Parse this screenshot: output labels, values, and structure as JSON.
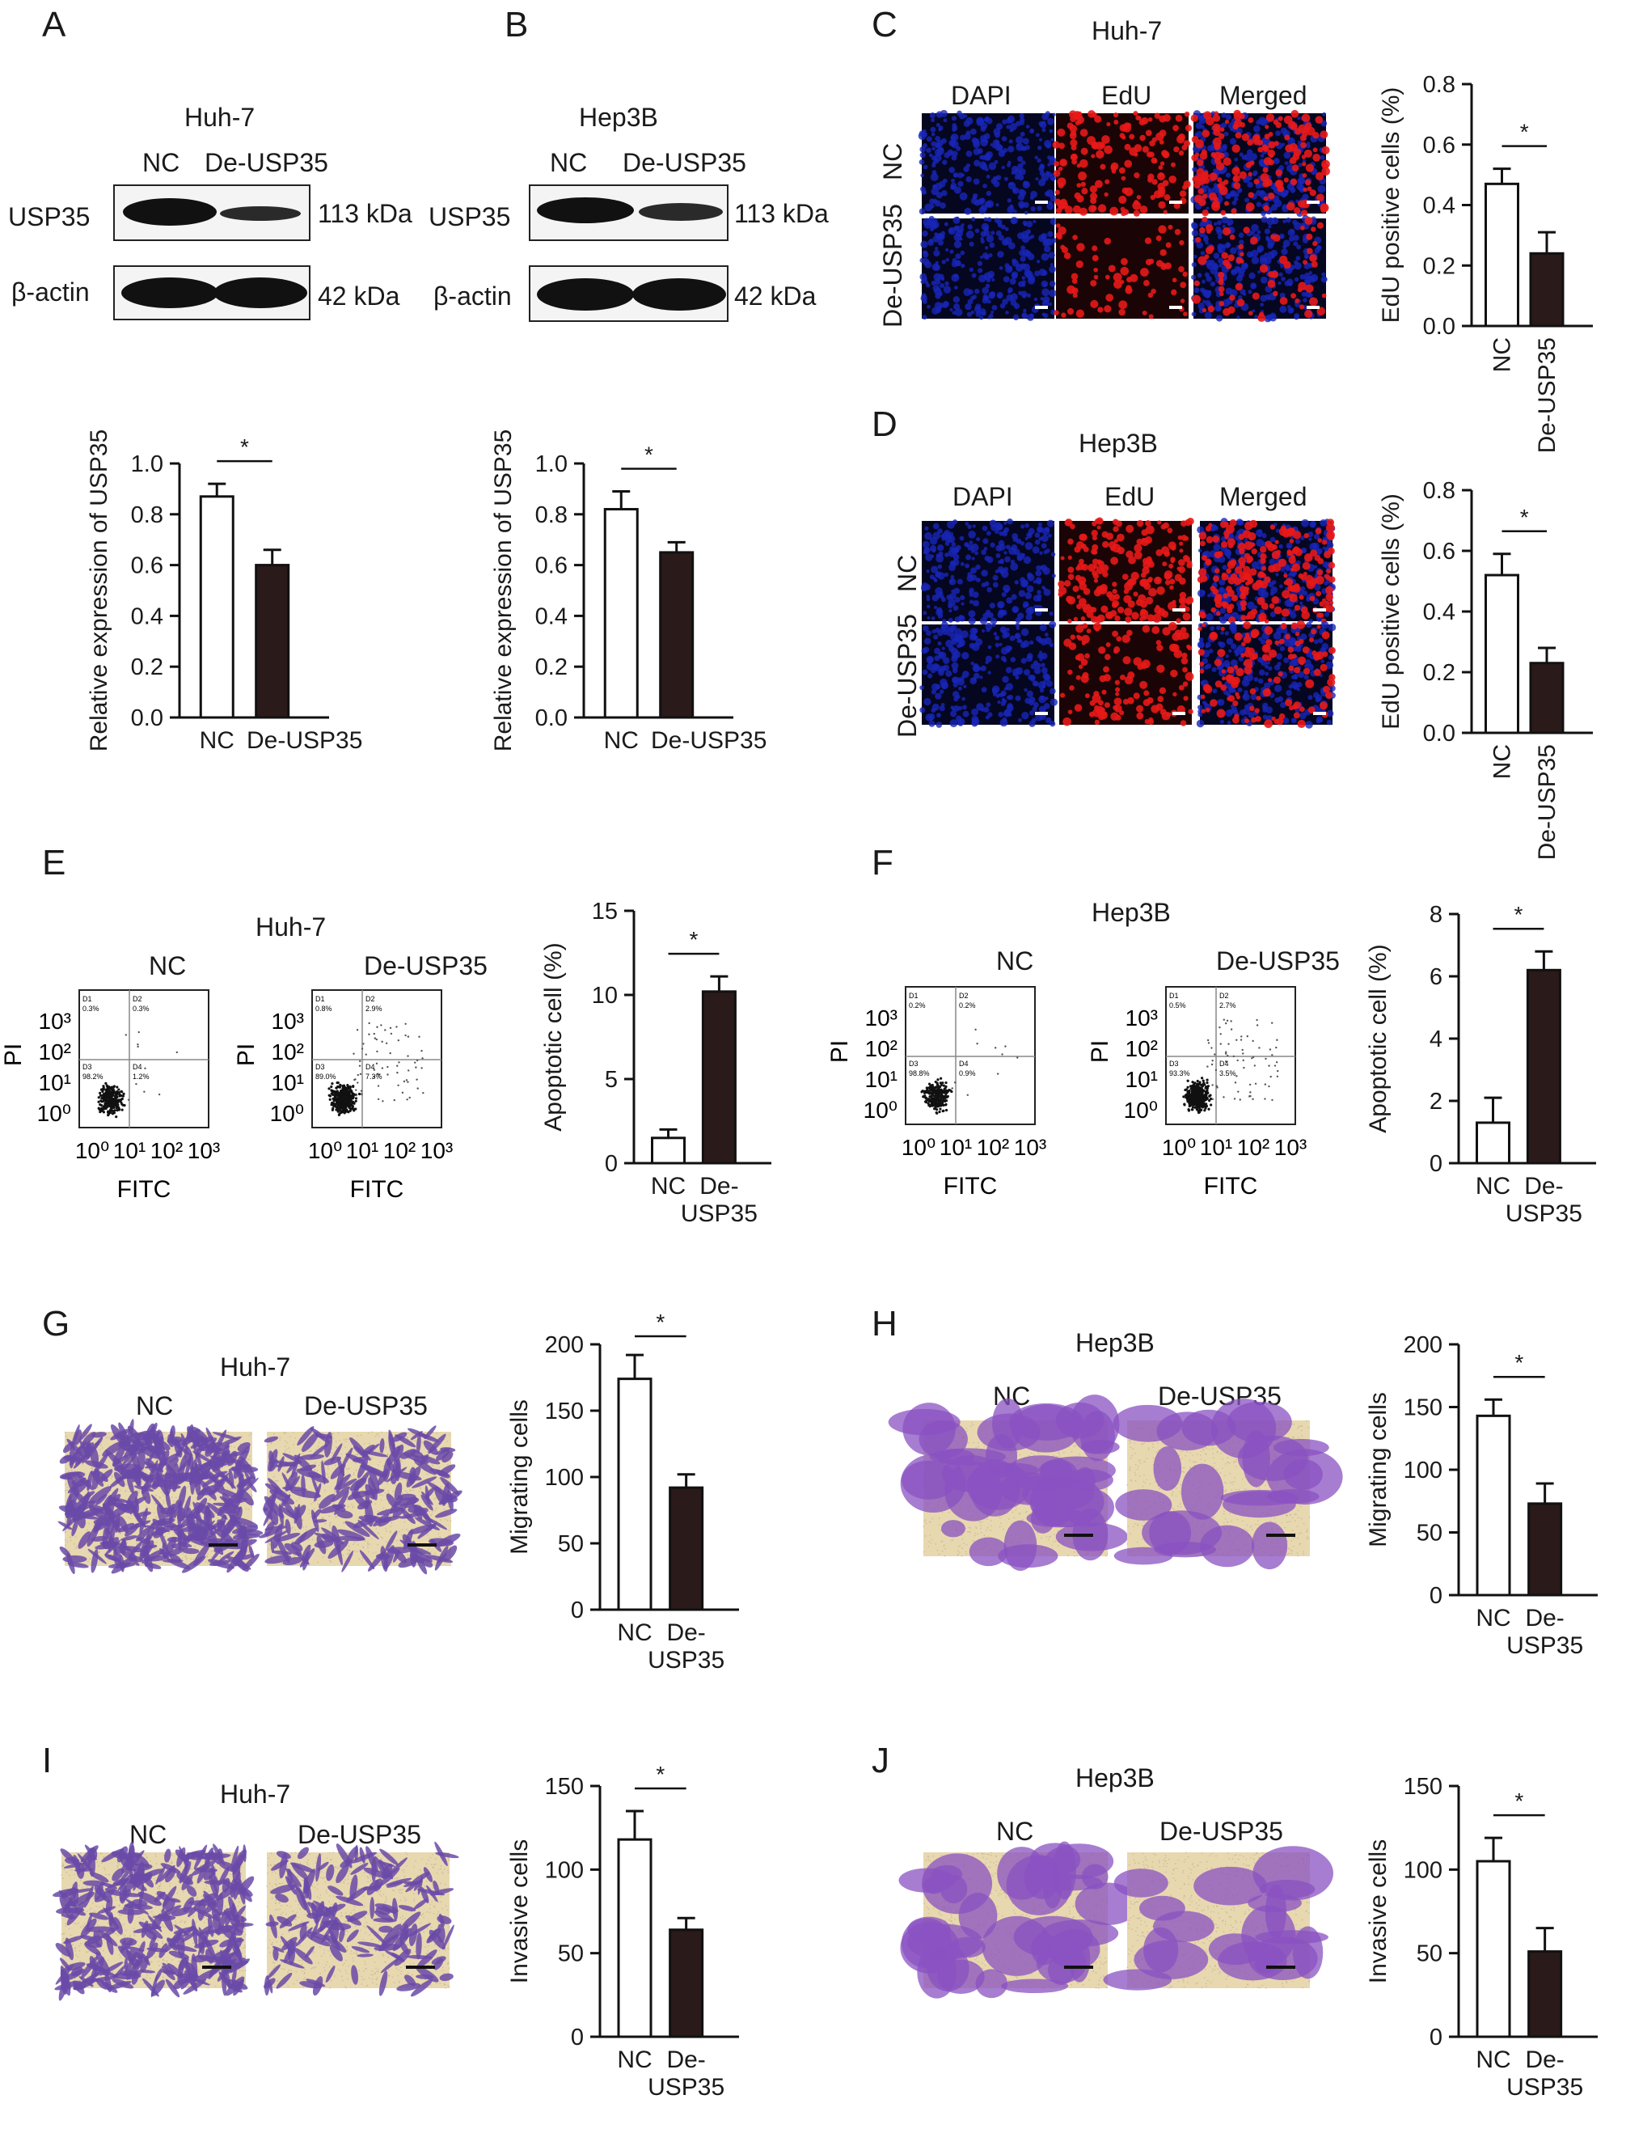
{
  "panels": {
    "A": {
      "letter": "A",
      "cell": "Huh-7",
      "nc": "NC",
      "de": "De-USP35",
      "row1": "USP35",
      "row1_kda": "113 kDa",
      "row2": "β-actin",
      "row2_kda": "42 kDa"
    },
    "B": {
      "letter": "B",
      "cell": "Hep3B",
      "nc": "NC",
      "de": "De-USP35",
      "row1": "USP35",
      "row1_kda": "113 kDa",
      "row2": "β-actin",
      "row2_kda": "42 kDa"
    },
    "C": {
      "letter": "C",
      "cell": "Huh-7",
      "col1": "DAPI",
      "col2": "EdU",
      "col3": "Merged",
      "row1": "NC",
      "row2": "De-USP35"
    },
    "D": {
      "letter": "D",
      "cell": "Hep3B",
      "col1": "DAPI",
      "col2": "EdU",
      "col3": "Merged",
      "row1": "NC",
      "row2": "De-USP35"
    },
    "E": {
      "letter": "E",
      "cell": "Huh-7",
      "nc": "NC",
      "de": "De-USP35",
      "ylabel": "PI",
      "xlabel": "FITC",
      "q_nc": [
        "D1 0.3%",
        "D2 0.3%",
        "D3 98.2%",
        "D4 1.2%"
      ],
      "q_de": [
        "D1 0.8%",
        "D2 2.9%",
        "D3 89.0%",
        "D4 7.3%"
      ]
    },
    "F": {
      "letter": "F",
      "cell": "Hep3B",
      "nc": "NC",
      "de": "De-USP35",
      "ylabel": "PI",
      "xlabel": "FITC",
      "q_nc": [
        "D1 0.2%",
        "D2 0.2%",
        "D3 98.8%",
        "D4 0.9%"
      ],
      "q_de": [
        "D1 0.5%",
        "D2 2.7%",
        "D3 93.3%",
        "D4 3.5%"
      ]
    },
    "G": {
      "letter": "G",
      "cell": "Huh-7",
      "nc": "NC",
      "de": "De-USP35"
    },
    "H": {
      "letter": "H",
      "cell": "Hep3B",
      "nc": "NC",
      "de": "De-USP35"
    },
    "I": {
      "letter": "I",
      "cell": "Huh-7",
      "nc": "NC",
      "de": "De-USP35"
    },
    "J": {
      "letter": "J",
      "cell": "Hep3B",
      "nc": "NC",
      "de": "De-USP35"
    }
  },
  "flow_ticks": [
    "10⁰",
    "10¹",
    "10²",
    "10³"
  ],
  "colors": {
    "nc_bar": "#ffffff",
    "de_bar": "#2b1a1a",
    "dapi": "#1020a8",
    "edu": "#d01818",
    "crystal": "#8a5cc0",
    "bg_transwell": "#e8d8b0"
  },
  "chart_data": [
    {
      "id": "A",
      "type": "bar",
      "categories": [
        "NC",
        "De-USP35"
      ],
      "values": [
        0.87,
        0.6
      ],
      "errors": [
        0.05,
        0.06
      ],
      "ylabel": "Relative expression of USP35",
      "ylim": [
        0,
        1.0
      ],
      "yticks": [
        "0.0",
        "0.2",
        "0.4",
        "0.6",
        "0.8",
        "1.0"
      ],
      "significance": "*",
      "rotate": false
    },
    {
      "id": "B",
      "type": "bar",
      "categories": [
        "NC",
        "De-USP35"
      ],
      "values": [
        0.82,
        0.65
      ],
      "errors": [
        0.07,
        0.04
      ],
      "ylabel": "Relative expression of USP35",
      "ylim": [
        0,
        1.0
      ],
      "yticks": [
        "0.0",
        "0.2",
        "0.4",
        "0.6",
        "0.8",
        "1.0"
      ],
      "significance": "*",
      "rotate": false
    },
    {
      "id": "C",
      "type": "bar",
      "categories": [
        "NC",
        "De-USP35"
      ],
      "values": [
        0.47,
        0.24
      ],
      "errors": [
        0.05,
        0.07
      ],
      "ylabel": "EdU positive cells (%)",
      "ylim": [
        0,
        0.8
      ],
      "yticks": [
        "0.0",
        "0.2",
        "0.4",
        "0.6",
        "0.8"
      ],
      "significance": "*",
      "rotate": true
    },
    {
      "id": "D",
      "type": "bar",
      "categories": [
        "NC",
        "De-USP35"
      ],
      "values": [
        0.52,
        0.23
      ],
      "errors": [
        0.07,
        0.05
      ],
      "ylabel": "EdU positive cells (%)",
      "ylim": [
        0,
        0.8
      ],
      "yticks": [
        "0.0",
        "0.2",
        "0.4",
        "0.6",
        "0.8"
      ],
      "significance": "*",
      "rotate": true
    },
    {
      "id": "E",
      "type": "bar",
      "categories": [
        "NC",
        "De-\nUSP35"
      ],
      "values": [
        1.5,
        10.2
      ],
      "errors": [
        0.5,
        0.9
      ],
      "ylabel": "Apoptotic cell (%)",
      "ylim": [
        0,
        15
      ],
      "yticks": [
        "0",
        "5",
        "10",
        "15"
      ],
      "significance": "*",
      "rotate": false
    },
    {
      "id": "F",
      "type": "bar",
      "categories": [
        "NC",
        "De-\nUSP35"
      ],
      "values": [
        1.3,
        6.2
      ],
      "errors": [
        0.8,
        0.6
      ],
      "ylabel": "Apoptotic cell (%)",
      "ylim": [
        0,
        8
      ],
      "yticks": [
        "0",
        "2",
        "4",
        "6",
        "8"
      ],
      "significance": "*",
      "rotate": false
    },
    {
      "id": "G",
      "type": "bar",
      "categories": [
        "NC",
        "De-\nUSP35"
      ],
      "values": [
        174,
        92
      ],
      "errors": [
        18,
        10
      ],
      "ylabel": "Migrating cells",
      "ylim": [
        0,
        200
      ],
      "yticks": [
        "0",
        "50",
        "100",
        "150",
        "200"
      ],
      "significance": "*",
      "rotate": false
    },
    {
      "id": "H",
      "type": "bar",
      "categories": [
        "NC",
        "De-\nUSP35"
      ],
      "values": [
        143,
        73
      ],
      "errors": [
        13,
        16
      ],
      "ylabel": "Migrating cells",
      "ylim": [
        0,
        200
      ],
      "yticks": [
        "0",
        "50",
        "100",
        "150",
        "200"
      ],
      "significance": "*",
      "rotate": false
    },
    {
      "id": "I",
      "type": "bar",
      "categories": [
        "NC",
        "De-\nUSP35"
      ],
      "values": [
        118,
        64
      ],
      "errors": [
        17,
        7
      ],
      "ylabel": "Invasive cells",
      "ylim": [
        0,
        150
      ],
      "yticks": [
        "0",
        "50",
        "100",
        "150"
      ],
      "significance": "*",
      "rotate": false
    },
    {
      "id": "J",
      "type": "bar",
      "categories": [
        "NC",
        "De-\nUSP35"
      ],
      "values": [
        105,
        51
      ],
      "errors": [
        14,
        14
      ],
      "ylabel": "Invasive cells",
      "ylim": [
        0,
        150
      ],
      "yticks": [
        "0",
        "50",
        "100",
        "150"
      ],
      "significance": "*",
      "rotate": false
    }
  ]
}
